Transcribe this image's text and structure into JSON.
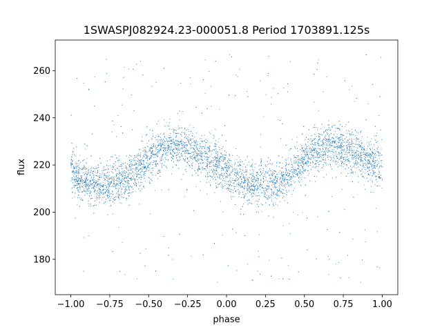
{
  "chart_data": {
    "type": "scatter",
    "title": "1SWASPJ082924.23-000051.8 Period 1703891.125s",
    "xlabel": "phase",
    "ylabel": "flux",
    "xlim": [
      -1.1,
      1.1
    ],
    "ylim": [
      165,
      273
    ],
    "xticks": [
      -1.0,
      -0.75,
      -0.5,
      -0.25,
      0.0,
      0.25,
      0.5,
      0.75,
      1.0
    ],
    "xtick_labels": [
      "−1.00",
      "−0.75",
      "−0.50",
      "−0.25",
      "0.00",
      "0.25",
      "0.50",
      "0.75",
      "1.00"
    ],
    "yticks": [
      180,
      200,
      220,
      240,
      260
    ],
    "ytick_labels": [
      "180",
      "200",
      "220",
      "240",
      "260"
    ],
    "grid": false,
    "marker_color": "#1f77b4",
    "series": [
      {
        "phase_profile": {
          "phase": [
            0.0,
            0.05,
            0.1,
            0.15,
            0.2,
            0.25,
            0.3,
            0.35,
            0.4,
            0.45,
            0.5,
            0.55,
            0.6,
            0.65,
            0.7,
            0.75,
            0.8,
            0.85,
            0.9,
            0.95,
            1.0
          ],
          "flux": [
            217,
            214,
            213,
            212,
            212,
            212,
            213,
            214,
            216,
            219,
            222,
            225,
            227,
            228,
            228,
            227,
            225,
            224,
            222,
            220,
            218
          ]
        },
        "scatter_sigma": 4.5,
        "outlier_range": [
          170,
          267
        ],
        "phase_range": [
          -1.0,
          1.0
        ]
      }
    ]
  }
}
